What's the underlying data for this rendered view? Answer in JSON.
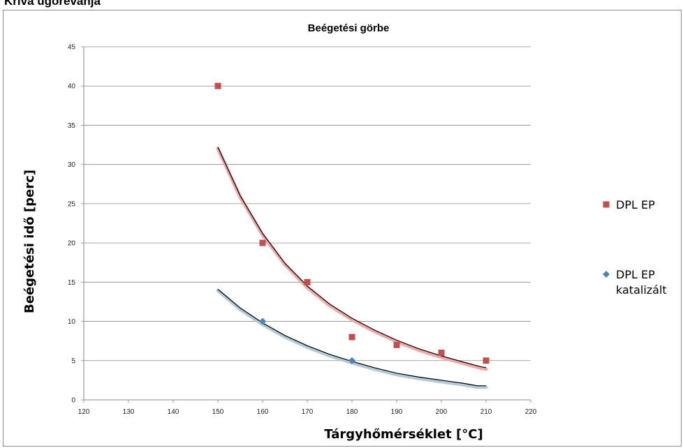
{
  "page": {
    "heading": "Kriva ugorevanja"
  },
  "chart_data": {
    "type": "scatter",
    "title": "Beégetési görbe",
    "xlabel": "Tárgyhőmérséklet [°C]",
    "ylabel": "Beégetési idő [perc]",
    "xlim": [
      120,
      220
    ],
    "ylim": [
      0,
      45
    ],
    "xticks": [
      "120",
      "130",
      "140",
      "150",
      "160",
      "170",
      "180",
      "190",
      "200",
      "210",
      "220"
    ],
    "yticks": [
      "0",
      "5",
      "10",
      "15",
      "20",
      "25",
      "30",
      "35",
      "40",
      "45"
    ],
    "grid": "horizontal",
    "legend_position": "right",
    "series": [
      {
        "name": "DPL EP",
        "marker": "square",
        "color": "#c0504d",
        "trend_color": "#f2a9a9",
        "points": [
          [
            150,
            40
          ],
          [
            160,
            20
          ],
          [
            170,
            15
          ],
          [
            180,
            8
          ],
          [
            190,
            7
          ],
          [
            200,
            6
          ],
          [
            210,
            5
          ]
        ],
        "trendline": [
          [
            150,
            32.2
          ],
          [
            155,
            26.0
          ],
          [
            160,
            21.2
          ],
          [
            165,
            17.4
          ],
          [
            170,
            14.5
          ],
          [
            175,
            12.2
          ],
          [
            180,
            10.4
          ],
          [
            185,
            8.9
          ],
          [
            190,
            7.6
          ],
          [
            195,
            6.5
          ],
          [
            200,
            5.6
          ],
          [
            205,
            4.8
          ],
          [
            209,
            4.2
          ],
          [
            210,
            4.1
          ]
        ]
      },
      {
        "name": "DPL EP\nkatalizált",
        "legend_lines": [
          "DPL EP",
          "katalizált"
        ],
        "marker": "diamond",
        "color": "#4f81bd",
        "trend_color": "#b3cbd6",
        "points": [
          [
            160,
            10
          ],
          [
            180,
            5
          ]
        ],
        "trendline": [
          [
            150,
            14.1
          ],
          [
            155,
            11.7
          ],
          [
            160,
            9.8
          ],
          [
            165,
            8.2
          ],
          [
            170,
            6.9
          ],
          [
            175,
            5.8
          ],
          [
            180,
            4.9
          ],
          [
            185,
            4.1
          ],
          [
            190,
            3.4
          ],
          [
            195,
            2.9
          ],
          [
            200,
            2.5
          ],
          [
            205,
            2.1
          ],
          [
            207,
            1.9
          ],
          [
            208,
            1.8
          ],
          [
            210,
            1.8
          ]
        ]
      }
    ]
  }
}
